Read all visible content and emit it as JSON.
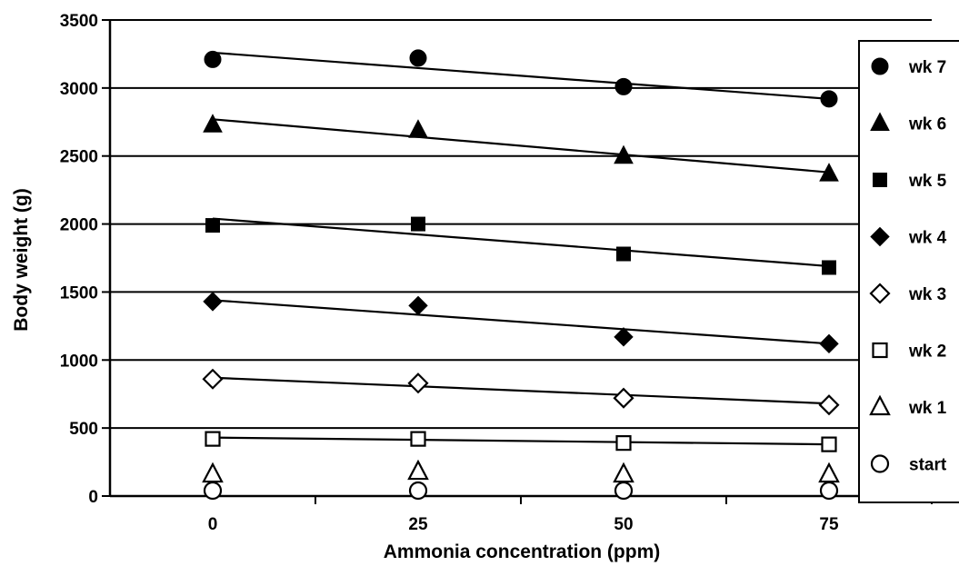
{
  "chart_data": {
    "type": "scatter",
    "xlabel": "Ammonia concentration (ppm)",
    "ylabel": "Body weight (g)",
    "x_ticks": [
      "0",
      "25",
      "50",
      "75"
    ],
    "y_ticks": [
      "0",
      "500",
      "1000",
      "1500",
      "2000",
      "2500",
      "3000",
      "3500"
    ],
    "xlim": [
      -12.5,
      87.5
    ],
    "ylim": [
      0,
      3500
    ],
    "grid": "horizontal",
    "legend_position": "right",
    "x": [
      0,
      25,
      50,
      75
    ],
    "series": [
      {
        "name": "wk 7",
        "marker": "filled-circle",
        "values": [
          3210,
          3220,
          3010,
          2920
        ],
        "trend": [
          3260,
          2920
        ]
      },
      {
        "name": "wk 6",
        "marker": "filled-triangle",
        "values": [
          2730,
          2690,
          2500,
          2370
        ],
        "trend": [
          2770,
          2380
        ]
      },
      {
        "name": "wk 5",
        "marker": "filled-square",
        "values": [
          1990,
          2000,
          1780,
          1680
        ],
        "trend": [
          2040,
          1690
        ]
      },
      {
        "name": "wk 4",
        "marker": "filled-diamond",
        "values": [
          1430,
          1400,
          1170,
          1120
        ],
        "trend": [
          1440,
          1120
        ]
      },
      {
        "name": "wk 3",
        "marker": "open-diamond",
        "values": [
          860,
          830,
          720,
          670
        ],
        "trend": [
          870,
          680
        ]
      },
      {
        "name": "wk 2",
        "marker": "open-square",
        "values": [
          420,
          420,
          390,
          380
        ],
        "trend": [
          430,
          380
        ]
      },
      {
        "name": "wk 1",
        "marker": "open-triangle",
        "values": [
          160,
          180,
          160,
          160
        ]
      },
      {
        "name": "start",
        "marker": "open-circle",
        "values": [
          40,
          40,
          40,
          40
        ]
      }
    ]
  }
}
